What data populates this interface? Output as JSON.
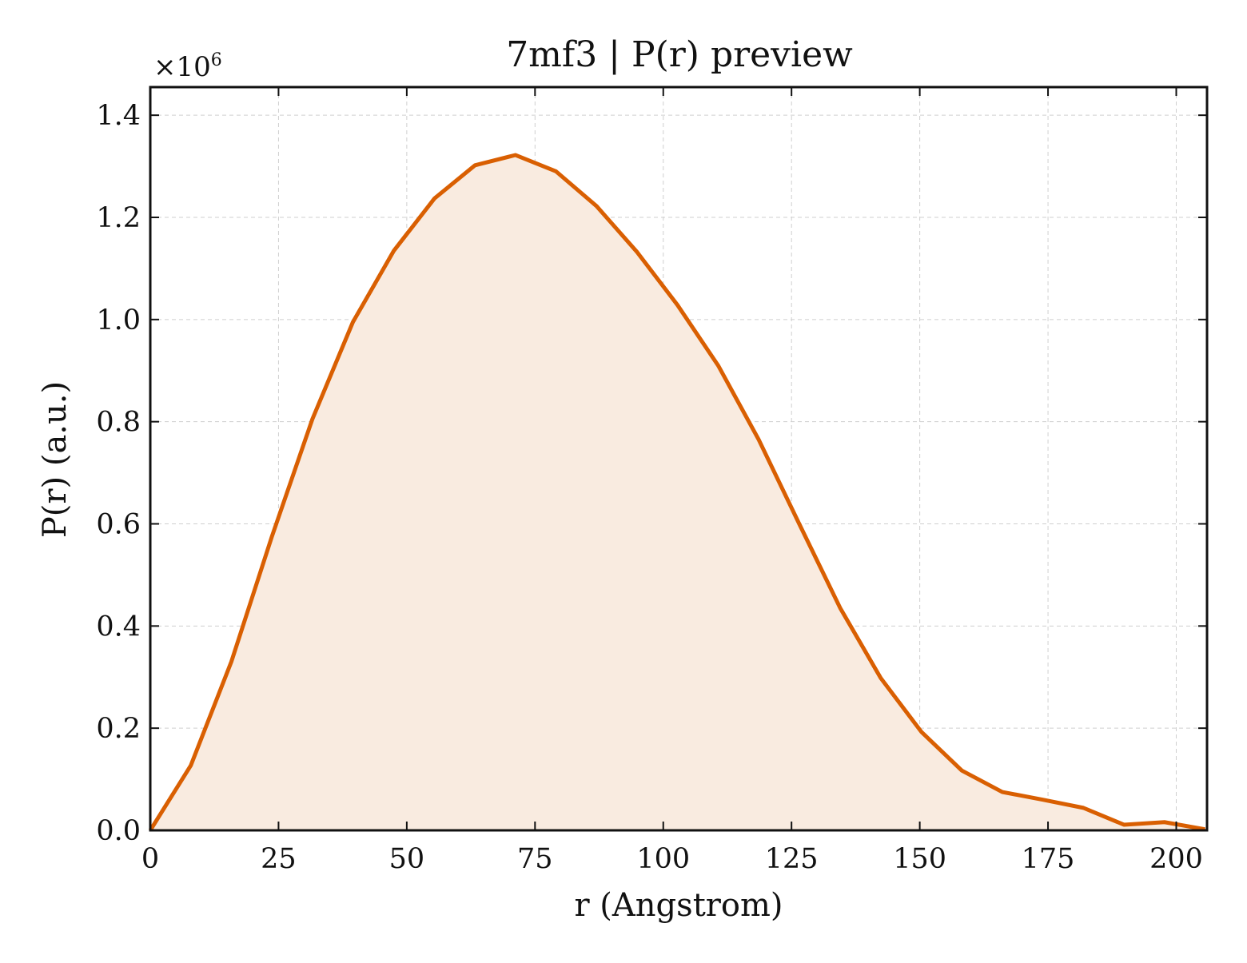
{
  "chart_data": {
    "type": "area",
    "title": "7mf3 | P(r) preview",
    "xlabel": "r (Angstrom)",
    "ylabel": "P(r) (a.u.)",
    "y_multiplier": "×10",
    "y_multiplier_exponent": "6",
    "xlim": [
      0,
      206
    ],
    "ylim": [
      0,
      1.455
    ],
    "x_ticks": [
      0,
      25,
      50,
      75,
      100,
      125,
      150,
      175,
      200
    ],
    "x_tick_labels": [
      "0",
      "25",
      "50",
      "75",
      "100",
      "125",
      "150",
      "175",
      "200"
    ],
    "y_ticks": [
      0,
      0.2,
      0.4,
      0.6,
      0.8,
      1.0,
      1.2,
      1.4
    ],
    "y_tick_labels": [
      "0.0",
      "0.2",
      "0.4",
      "0.6",
      "0.8",
      "1.0",
      "1.2",
      "1.4"
    ],
    "grid": true,
    "line_color": "#d95f02",
    "fill_color": "#f9ebe0",
    "series": [
      {
        "x": [
          0,
          7.9,
          15.8,
          23.7,
          31.6,
          39.5,
          47.5,
          55.4,
          63.3,
          71.2,
          79.1,
          87.0,
          94.9,
          102.8,
          110.7,
          118.6,
          126.5,
          134.5,
          142.4,
          150.3,
          158.2,
          166.1,
          174.0,
          181.9,
          189.8,
          197.7,
          205.6
        ],
        "y": [
          0.0,
          0.127,
          0.33,
          0.575,
          0.805,
          0.995,
          1.135,
          1.237,
          1.302,
          1.322,
          1.29,
          1.222,
          1.132,
          1.028,
          0.91,
          0.765,
          0.6,
          0.435,
          0.298,
          0.193,
          0.117,
          0.075,
          0.06,
          0.044,
          0.011,
          0.016,
          0.002
        ]
      }
    ]
  }
}
